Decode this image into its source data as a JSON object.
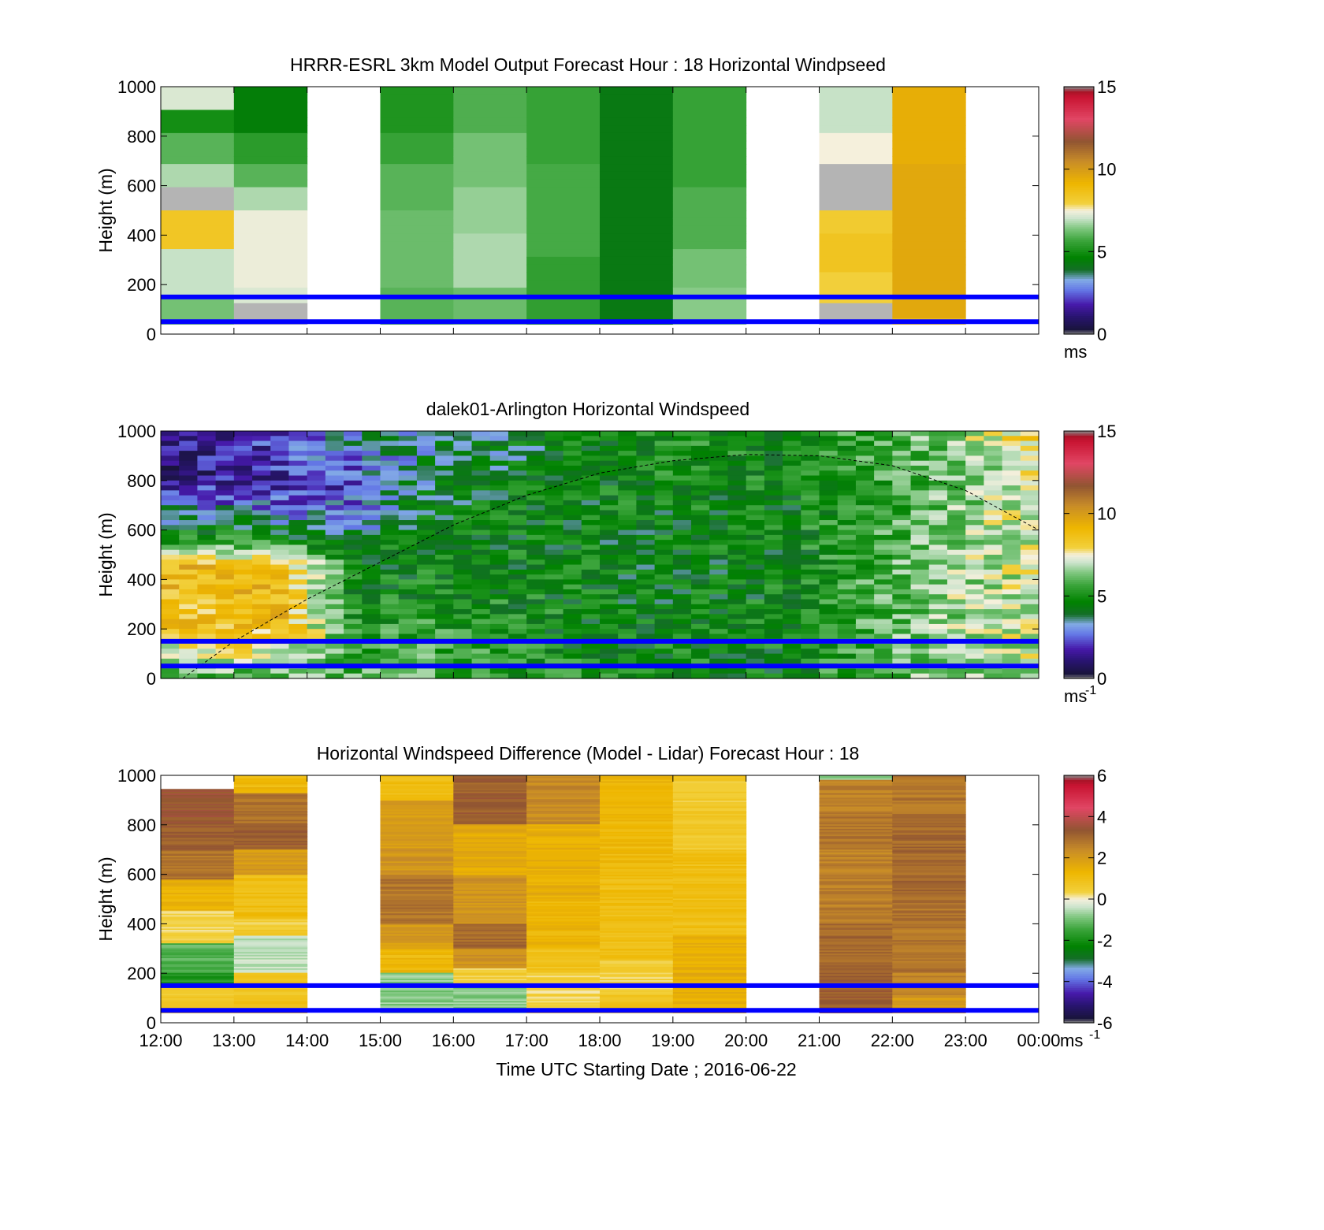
{
  "figure": {
    "xlabel": "Time UTC  Starting Date ; 2016-06-22",
    "x_ticks": [
      "12:00",
      "13:00",
      "14:00",
      "15:00",
      "16:00",
      "17:00",
      "18:00",
      "19:00",
      "20:00",
      "21:00",
      "22:00",
      "23:00",
      "00:00"
    ]
  },
  "chart_data": [
    {
      "type": "heatmap",
      "title": "HRRR-ESRL 3km Model Output   Forecast Hour : 18 Horizontal Windpseed",
      "ylabel": "Height (m)",
      "y_ticks": [
        "0",
        "200",
        "400",
        "600",
        "800",
        "1000"
      ],
      "ylim": [
        0,
        1000
      ],
      "x_range_hours": [
        12,
        24
      ],
      "colorbar": {
        "ticks": [
          "0",
          "5",
          "10",
          "15"
        ],
        "lim": [
          0,
          15
        ],
        "unit": "ms",
        "unit_sup": ""
      },
      "reference_heights_m": [
        150,
        50
      ],
      "reference_line_color": "#0000ff",
      "columns": [
        {
          "start": 12,
          "end": 13,
          "layers": [
            [
              1000,
              7.2
            ],
            [
              900,
              5.0
            ],
            [
              800,
              6.0
            ],
            [
              700,
              6.8
            ],
            [
              600,
              0
            ],
            [
              500,
              8.4
            ],
            [
              350,
              7.0
            ],
            [
              160,
              6.3
            ],
            [
              40,
              4.5
            ]
          ]
        },
        {
          "start": 13,
          "end": 14,
          "layers": [
            [
              1000,
              4.5
            ],
            [
              800,
              5.4
            ],
            [
              700,
              6.0
            ],
            [
              600,
              6.8
            ],
            [
              500,
              7.4
            ],
            [
              200,
              7.2
            ],
            [
              120,
              0
            ],
            [
              40,
              4.6
            ]
          ]
        },
        {
          "start": 15,
          "end": 16,
          "layers": [
            [
              1000,
              5.2
            ],
            [
              800,
              5.6
            ],
            [
              700,
              6.0
            ],
            [
              500,
              6.2
            ],
            [
              200,
              6.0
            ],
            [
              40,
              4.8
            ]
          ]
        },
        {
          "start": 16,
          "end": 17,
          "layers": [
            [
              1000,
              5.9
            ],
            [
              800,
              6.3
            ],
            [
              600,
              6.6
            ],
            [
              400,
              6.8
            ],
            [
              200,
              6.2
            ],
            [
              40,
              5.6
            ]
          ]
        },
        {
          "start": 17,
          "end": 18,
          "layers": [
            [
              1000,
              5.6
            ],
            [
              700,
              5.8
            ],
            [
              300,
              5.5
            ],
            [
              40,
              5.2
            ]
          ]
        },
        {
          "start": 18,
          "end": 19,
          "layers": [
            [
              1000,
              4.3
            ],
            [
              40,
              4.6
            ]
          ]
        },
        {
          "start": 19,
          "end": 20,
          "layers": [
            [
              1000,
              5.6
            ],
            [
              600,
              5.9
            ],
            [
              350,
              6.3
            ],
            [
              200,
              6.5
            ],
            [
              40,
              6.8
            ]
          ]
        },
        {
          "start": 21,
          "end": 22,
          "layers": [
            [
              1000,
              7.0
            ],
            [
              800,
              7.5
            ],
            [
              700,
              0
            ],
            [
              500,
              8.2
            ],
            [
              400,
              8.5
            ],
            [
              250,
              8.0
            ],
            [
              130,
              0
            ],
            [
              40,
              7.6
            ]
          ]
        },
        {
          "start": 22,
          "end": 23,
          "layers": [
            [
              1000,
              9.4
            ],
            [
              700,
              9.6
            ],
            [
              60,
              8.4
            ]
          ]
        }
      ]
    },
    {
      "type": "heatmap",
      "title": "dalek01-Arlington  Horizontal Windspeed",
      "ylabel": "Height (m)",
      "y_ticks": [
        "0",
        "200",
        "400",
        "600",
        "800",
        "1000"
      ],
      "ylim": [
        0,
        1000
      ],
      "x_range_hours": [
        12,
        24
      ],
      "colorbar": {
        "ticks": [
          "0",
          "5",
          "10",
          "15"
        ],
        "lim": [
          0,
          15
        ],
        "unit": "ms",
        "unit_sup": "-1"
      },
      "reference_heights_m": [
        150,
        50
      ],
      "reference_line_color": "#0000ff",
      "boundary_layer_curve": [
        [
          12.3,
          0
        ],
        [
          13,
          150
        ],
        [
          14,
          320
        ],
        [
          15,
          470
        ],
        [
          16,
          620
        ],
        [
          17,
          740
        ],
        [
          18,
          830
        ],
        [
          19,
          880
        ],
        [
          20,
          905
        ],
        [
          21,
          900
        ],
        [
          22,
          860
        ],
        [
          23,
          760
        ],
        [
          24,
          600
        ]
      ],
      "time_bin_hours": 0.25,
      "profile_keypoints": [
        {
          "t": 12.0,
          "wind": [
            [
              0,
              5.5
            ],
            [
              200,
              8.5
            ],
            [
              450,
              9.0
            ],
            [
              560,
              5.0
            ],
            [
              700,
              3.2
            ],
            [
              800,
              1.2
            ],
            [
              1000,
              1.5
            ]
          ]
        },
        {
          "t": 13.5,
          "wind": [
            [
              0,
              6.0
            ],
            [
              200,
              8.8
            ],
            [
              450,
              9.2
            ],
            [
              560,
              5.2
            ],
            [
              700,
              2.5
            ],
            [
              800,
              1.8
            ],
            [
              1000,
              2.2
            ]
          ]
        },
        {
          "t": 14.5,
          "wind": [
            [
              0,
              6.0
            ],
            [
              300,
              5.0
            ],
            [
              500,
              4.6
            ],
            [
              650,
              2.8
            ],
            [
              800,
              2.2
            ],
            [
              1000,
              3.4
            ]
          ]
        },
        {
          "t": 15.5,
          "wind": [
            [
              0,
              6.0
            ],
            [
              300,
              5.0
            ],
            [
              600,
              4.6
            ],
            [
              850,
              3.6
            ],
            [
              1000,
              3.8
            ]
          ]
        },
        {
          "t": 17.0,
          "wind": [
            [
              0,
              5.0
            ],
            [
              400,
              4.8
            ],
            [
              700,
              4.6
            ],
            [
              1000,
              4.2
            ]
          ]
        },
        {
          "t": 18.5,
          "wind": [
            [
              0,
              4.8
            ],
            [
              500,
              4.5
            ],
            [
              800,
              4.8
            ],
            [
              1000,
              5.0
            ]
          ]
        },
        {
          "t": 20.5,
          "wind": [
            [
              0,
              4.8
            ],
            [
              500,
              4.7
            ],
            [
              800,
              4.8
            ],
            [
              1000,
              5.0
            ]
          ]
        },
        {
          "t": 22.5,
          "wind": [
            [
              0,
              6.5
            ],
            [
              400,
              6.5
            ],
            [
              800,
              6.0
            ],
            [
              1000,
              6.3
            ]
          ]
        },
        {
          "t": 23.9,
          "wind": [
            [
              0,
              7.0
            ],
            [
              300,
              7.2
            ],
            [
              600,
              7.3
            ],
            [
              800,
              7.4
            ],
            [
              1000,
              8.5
            ]
          ]
        }
      ],
      "data_end_hour": 23.9
    },
    {
      "type": "heatmap",
      "title": "Horizontal Windspeed Difference (Model - Lidar) Forecast Hour : 18",
      "ylabel": "Height (m)",
      "y_ticks": [
        "0",
        "200",
        "400",
        "600",
        "800",
        "1000"
      ],
      "ylim": [
        0,
        1000
      ],
      "x_range_hours": [
        12,
        24
      ],
      "colorbar": {
        "ticks": [
          "-6",
          "-4",
          "-2",
          "0",
          "2",
          "4",
          "6"
        ],
        "lim": [
          -6,
          6
        ],
        "unit": "ms",
        "unit_sup": "-1"
      },
      "reference_heights_m": [
        150,
        50
      ],
      "reference_line_color": "#0000ff",
      "columns": [
        {
          "start": 12,
          "end": 13,
          "top": 945,
          "layers": [
            [
              945,
              3.4
            ],
            [
              800,
              3.2
            ],
            [
              700,
              2.8
            ],
            [
              580,
              1.4
            ],
            [
              450,
              0.4
            ],
            [
              320,
              -1.2
            ],
            [
              200,
              -1.8
            ],
            [
              140,
              0.6
            ],
            [
              40,
              1.2
            ]
          ]
        },
        {
          "start": 13,
          "end": 14,
          "top": 1000,
          "layers": [
            [
              1000,
              1.2
            ],
            [
              930,
              2.8
            ],
            [
              800,
              3.2
            ],
            [
              700,
              2.0
            ],
            [
              600,
              1.0
            ],
            [
              420,
              0.5
            ],
            [
              350,
              -0.4
            ],
            [
              200,
              0.8
            ],
            [
              40,
              1.0
            ]
          ]
        },
        {
          "start": 15,
          "end": 16,
          "top": 1000,
          "layers": [
            [
              1000,
              1.0
            ],
            [
              900,
              2.0
            ],
            [
              700,
              2.2
            ],
            [
              600,
              2.8
            ],
            [
              400,
              2.0
            ],
            [
              300,
              1.2
            ],
            [
              200,
              -0.8
            ],
            [
              40,
              -1.5
            ]
          ]
        },
        {
          "start": 16,
          "end": 17,
          "top": 1000,
          "layers": [
            [
              1000,
              3.2
            ],
            [
              800,
              1.6
            ],
            [
              600,
              2.2
            ],
            [
              400,
              3.0
            ],
            [
              300,
              2.2
            ],
            [
              220,
              0.5
            ],
            [
              150,
              -0.8
            ],
            [
              40,
              -0.5
            ]
          ]
        },
        {
          "start": 17,
          "end": 18,
          "top": 1000,
          "layers": [
            [
              1000,
              2.4
            ],
            [
              800,
              1.5
            ],
            [
              500,
              1.3
            ],
            [
              300,
              0.8
            ],
            [
              200,
              0.3
            ],
            [
              40,
              -0.5
            ]
          ]
        },
        {
          "start": 18,
          "end": 19,
          "top": 1000,
          "layers": [
            [
              1000,
              1.3
            ],
            [
              800,
              1.2
            ],
            [
              600,
              1.0
            ],
            [
              400,
              1.0
            ],
            [
              250,
              0.4
            ],
            [
              120,
              0.8
            ],
            [
              40,
              1.0
            ]
          ]
        },
        {
          "start": 19,
          "end": 20,
          "top": 1000,
          "layers": [
            [
              1000,
              1.0
            ],
            [
              980,
              0.6
            ],
            [
              800,
              0.6
            ],
            [
              700,
              1.0
            ],
            [
              350,
              1.5
            ],
            [
              40,
              2.0
            ]
          ]
        },
        {
          "start": 21,
          "end": 22,
          "top": 1000,
          "layers": [
            [
              1000,
              -0.8
            ],
            [
              980,
              2.6
            ],
            [
              850,
              2.8
            ],
            [
              700,
              2.6
            ],
            [
              400,
              3.0
            ],
            [
              200,
              3.2
            ],
            [
              40,
              3.3
            ]
          ]
        },
        {
          "start": 22,
          "end": 23,
          "top": 1000,
          "layers": [
            [
              1000,
              2.8
            ],
            [
              800,
              3.0
            ],
            [
              500,
              2.8
            ],
            [
              200,
              2.5
            ],
            [
              100,
              2.0
            ],
            [
              40,
              1.6
            ]
          ]
        }
      ]
    }
  ]
}
